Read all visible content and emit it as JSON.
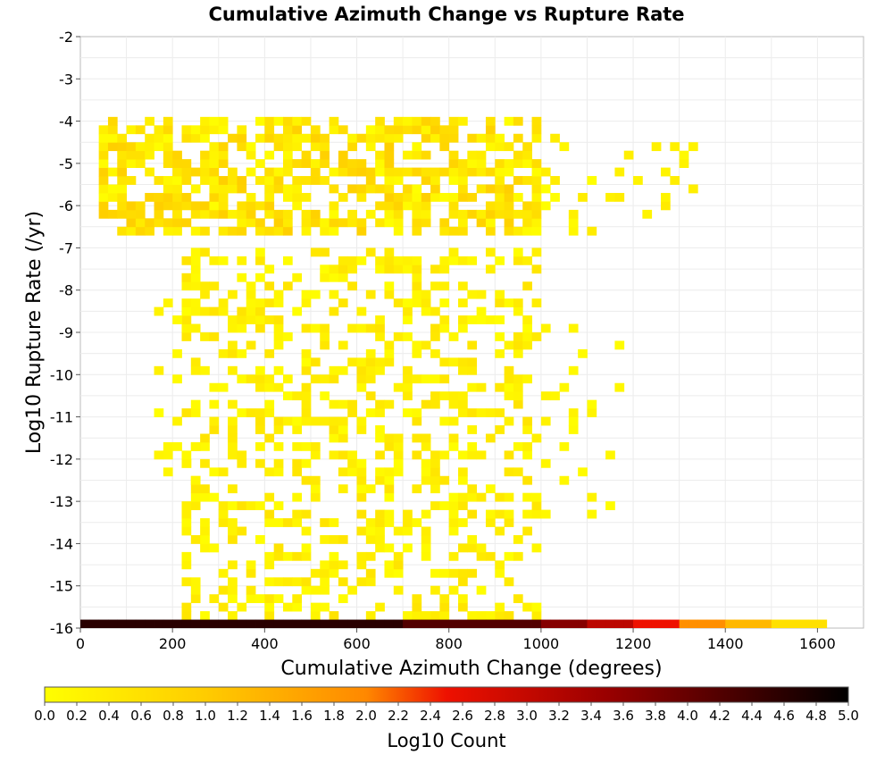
{
  "chart_data": {
    "type": "heatmap",
    "title": "Cumulative Azimuth Change vs Rupture Rate",
    "xlabel": "Cumulative Azimuth Change (degrees)",
    "ylabel": "Log10 Rupture Rate (/yr)",
    "xlim": [
      0,
      1700
    ],
    "ylim": [
      -16,
      -2
    ],
    "xticks": [
      0,
      200,
      400,
      600,
      800,
      1000,
      1200,
      1400,
      1600
    ],
    "yticks": [
      -2,
      -3,
      -4,
      -5,
      -6,
      -7,
      -8,
      -9,
      -10,
      -11,
      -12,
      -13,
      -14,
      -15,
      -16
    ],
    "grid": true,
    "bin_width_x": 20,
    "bin_height_y": 0.2,
    "colorbar": {
      "label": "Log10 Count",
      "range": [
        0,
        5
      ],
      "ticks": [
        "0.0",
        "0.2",
        "0.4",
        "0.6",
        "0.8",
        "1.0",
        "1.2",
        "1.4",
        "1.6",
        "1.8",
        "2.0",
        "2.2",
        "2.4",
        "2.6",
        "2.8",
        "3.0",
        "3.2",
        "3.4",
        "3.6",
        "3.8",
        "4.0",
        "4.2",
        "4.4",
        "4.6",
        "4.8",
        "5.0"
      ],
      "colors": [
        "#ffff00",
        "#ffcc00",
        "#ff8800",
        "#ee1100",
        "#990000",
        "#000000"
      ],
      "position": "bottom"
    },
    "bottom_row": {
      "y": -15.9,
      "segments": [
        {
          "x": [
            0,
            700
          ],
          "value": 4.6
        },
        {
          "x": [
            700,
            1000
          ],
          "value": 4.2
        },
        {
          "x": [
            1000,
            1100
          ],
          "value": 3.7
        },
        {
          "x": [
            1100,
            1200
          ],
          "value": 3.1
        },
        {
          "x": [
            1200,
            1300
          ],
          "value": 2.5
        },
        {
          "x": [
            1300,
            1400
          ],
          "value": 1.9
        },
        {
          "x": [
            1400,
            1500
          ],
          "value": 1.3
        },
        {
          "x": [
            1500,
            1620
          ],
          "value": 0.6
        }
      ]
    },
    "density_regions": [
      {
        "name": "upper-cluster",
        "x": [
          40,
          1000
        ],
        "y": [
          -6.7,
          -4.0
        ],
        "density": 0.6,
        "peak": 0.95
      },
      {
        "name": "upper-tail",
        "x": [
          1000,
          1340
        ],
        "y": [
          -6.7,
          -4.4
        ],
        "density": 0.15,
        "peak": 0.4
      },
      {
        "name": "lower-cluster",
        "x": [
          220,
          1000
        ],
        "y": [
          -15.8,
          -7.2
        ],
        "density": 0.35,
        "peak": 0.55
      },
      {
        "name": "lower-left",
        "x": [
          160,
          260
        ],
        "y": [
          -13.0,
          -8.0
        ],
        "density": 0.12,
        "peak": 0.3
      },
      {
        "name": "lower-right",
        "x": [
          1000,
          1180
        ],
        "y": [
          -13.4,
          -8.4
        ],
        "density": 0.07,
        "peak": 0.25
      }
    ]
  }
}
